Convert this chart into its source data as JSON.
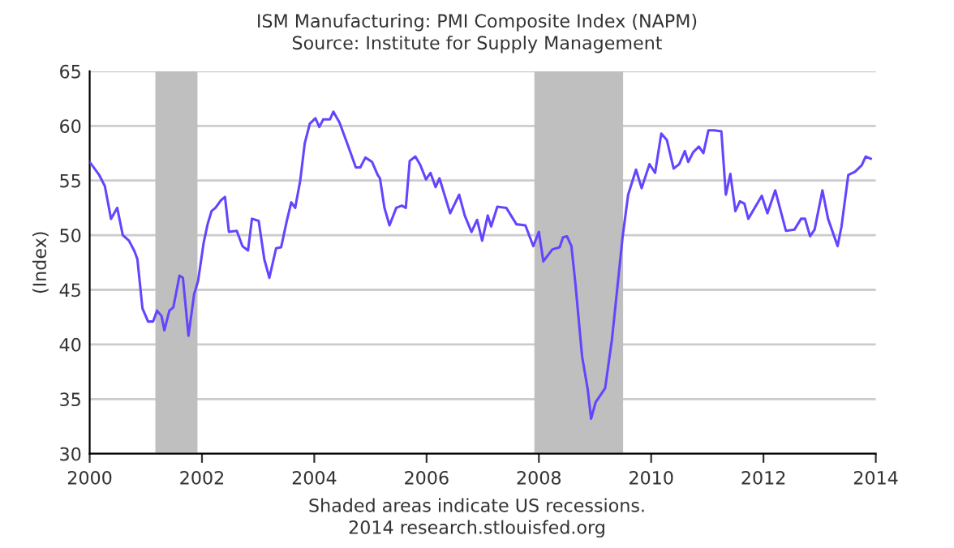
{
  "chart_data": {
    "type": "line",
    "title": "ISM Manufacturing: PMI Composite Index (NAPM)",
    "subtitle": "Source: Institute for Supply Management",
    "ylabel": "(Index)",
    "annotations": [
      "Shaded areas indicate US recessions.",
      "2014 research.stlouisfed.org"
    ],
    "xlim": [
      2000,
      2014
    ],
    "xticks": [
      2000,
      2002,
      2004,
      2006,
      2008,
      2010,
      2012,
      2014
    ],
    "ylim": [
      30,
      65
    ],
    "yticks": [
      30,
      35,
      40,
      45,
      50,
      55,
      60,
      65
    ],
    "grid": "y",
    "legend": false,
    "marker": "none",
    "line_style": "solid",
    "bands": [
      {
        "axis": "x",
        "from": 2001.17,
        "to": 2001.92,
        "color": "#bfbfbf"
      },
      {
        "axis": "x",
        "from": 2007.92,
        "to": 2009.5,
        "color": "#bfbfbf"
      }
    ],
    "series": [
      {
        "color": "#6644ff",
        "x": [
          2000.0,
          2000.17,
          2000.27,
          2000.38,
          2000.49,
          2000.59,
          2000.7,
          2000.8,
          2000.85,
          2000.94,
          2001.04,
          2001.13,
          2001.2,
          2001.28,
          2001.33,
          2001.42,
          2001.49,
          2001.6,
          2001.66,
          2001.76,
          2001.86,
          2001.93,
          2002.03,
          2002.1,
          2002.17,
          2002.24,
          2002.34,
          2002.41,
          2002.48,
          2002.62,
          2002.72,
          2002.82,
          2002.89,
          2003.01,
          2003.11,
          2003.2,
          2003.32,
          2003.41,
          2003.51,
          2003.59,
          2003.66,
          2003.75,
          2003.83,
          2003.92,
          2004.02,
          2004.09,
          2004.16,
          2004.28,
          2004.34,
          2004.45,
          2004.6,
          2004.74,
          2004.82,
          2004.91,
          2005.03,
          2005.13,
          2005.17,
          2005.25,
          2005.34,
          2005.46,
          2005.56,
          2005.63,
          2005.7,
          2005.8,
          2005.89,
          2005.99,
          2006.07,
          2006.16,
          2006.23,
          2006.42,
          2006.58,
          2006.68,
          2006.8,
          2006.9,
          2006.99,
          2007.09,
          2007.15,
          2007.26,
          2007.42,
          2007.6,
          2007.76,
          2007.9,
          2008.0,
          2008.08,
          2008.24,
          2008.37,
          2008.43,
          2008.5,
          2008.58,
          2008.65,
          2008.77,
          2008.87,
          2008.93,
          2009.01,
          2009.18,
          2009.3,
          2009.39,
          2009.49,
          2009.59,
          2009.73,
          2009.83,
          2009.97,
          2010.07,
          2010.18,
          2010.28,
          2010.4,
          2010.5,
          2010.6,
          2010.66,
          2010.75,
          2010.85,
          2010.93,
          2011.02,
          2011.12,
          2011.25,
          2011.33,
          2011.41,
          2011.5,
          2011.58,
          2011.66,
          2011.73,
          2011.97,
          2012.07,
          2012.21,
          2012.4,
          2012.55,
          2012.67,
          2012.74,
          2012.83,
          2012.91,
          2013.05,
          2013.15,
          2013.32,
          2013.39,
          2013.51,
          2013.63,
          2013.75,
          2013.82,
          2013.91
        ],
        "values": [
          56.7,
          55.5,
          54.5,
          51.5,
          52.5,
          50.0,
          49.5,
          48.5,
          47.8,
          43.3,
          42.1,
          42.1,
          43.1,
          42.6,
          41.3,
          43.1,
          43.4,
          46.3,
          46.1,
          40.8,
          44.6,
          45.8,
          49.3,
          51.0,
          52.2,
          52.5,
          53.2,
          53.5,
          50.3,
          50.4,
          49.0,
          48.6,
          51.5,
          51.3,
          47.8,
          46.1,
          48.8,
          48.9,
          51.3,
          53.0,
          52.5,
          55.0,
          58.4,
          60.2,
          60.7,
          59.9,
          60.6,
          60.6,
          61.3,
          60.3,
          58.2,
          56.2,
          56.2,
          57.1,
          56.7,
          55.5,
          55.2,
          52.5,
          50.9,
          52.5,
          52.7,
          52.5,
          56.8,
          57.2,
          56.4,
          55.1,
          55.7,
          54.4,
          55.2,
          52.0,
          53.7,
          51.8,
          50.3,
          51.4,
          49.5,
          51.8,
          50.8,
          52.6,
          52.5,
          51.0,
          50.9,
          49.0,
          50.3,
          47.6,
          48.7,
          48.9,
          49.8,
          49.9,
          49.0,
          45.6,
          38.9,
          35.9,
          33.2,
          34.7,
          36.0,
          40.4,
          44.8,
          49.8,
          53.7,
          56.0,
          54.3,
          56.5,
          55.7,
          59.3,
          58.7,
          56.1,
          56.5,
          57.7,
          56.7,
          57.6,
          58.1,
          57.5,
          59.6,
          59.6,
          59.5,
          53.7,
          55.6,
          52.2,
          53.1,
          52.9,
          51.5,
          53.6,
          52.0,
          54.1,
          50.4,
          50.5,
          51.5,
          51.5,
          49.9,
          50.5,
          54.1,
          51.5,
          49.0,
          50.8,
          55.5,
          55.8,
          56.4,
          57.2,
          57.0
        ]
      }
    ]
  }
}
